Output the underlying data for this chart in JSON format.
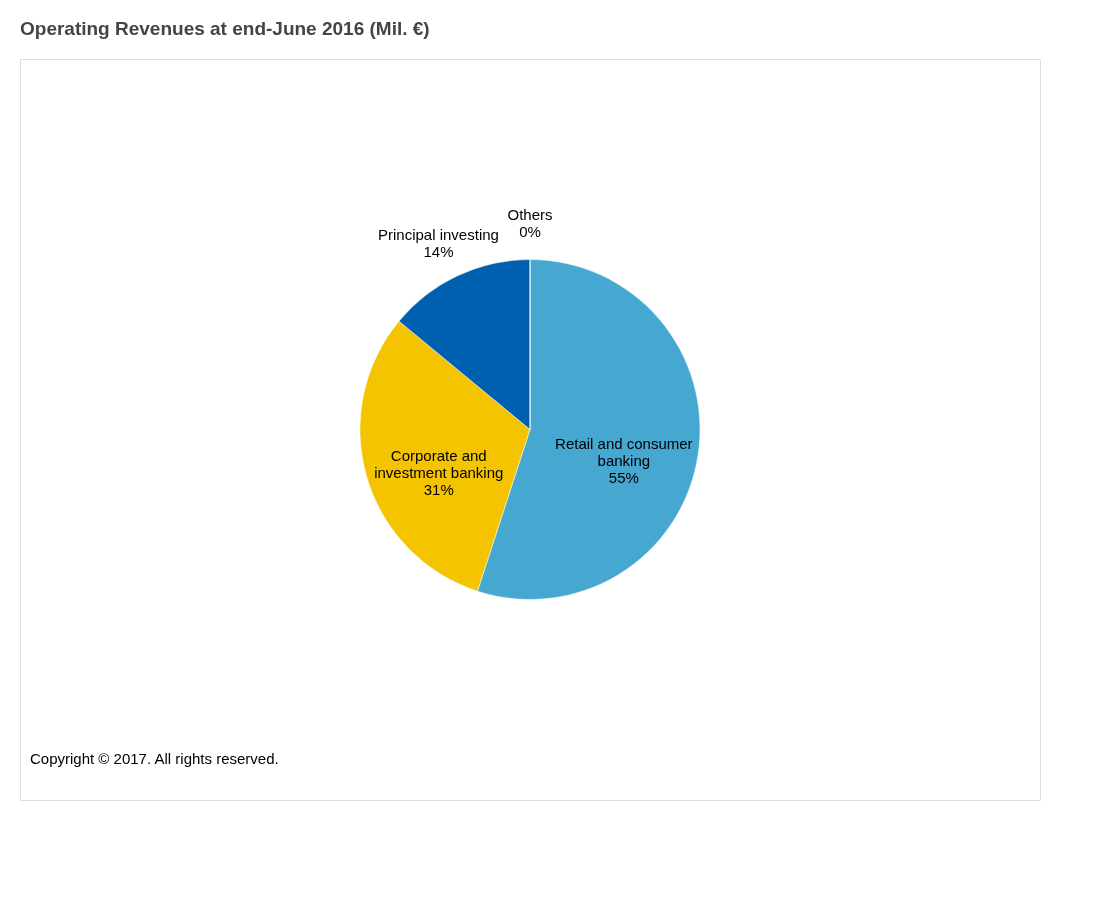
{
  "chart_data": {
    "type": "pie",
    "title": "Operating Revenues at end-June 2016 (Mil. €)",
    "categories": [
      "Retail and consumer banking",
      "Corporate and investment banking",
      "Principal investing",
      "Others"
    ],
    "values": [
      55,
      31,
      14,
      0
    ],
    "colors": [
      "#46a7d0",
      "#f5c400",
      "#0060b0",
      "#8cb040"
    ],
    "value_labels": [
      "55%",
      "31%",
      "14%",
      "0%"
    ],
    "legend": false,
    "annotations": [
      "Copyright © 2017. All rights reserved."
    ]
  }
}
